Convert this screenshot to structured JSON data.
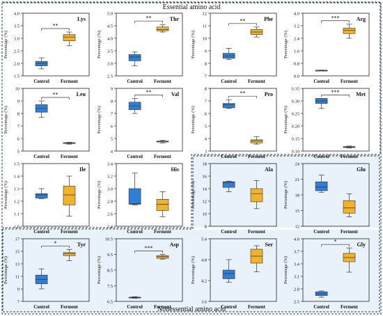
{
  "figure": {
    "top_section_title": "Essential amino acid",
    "bottom_section_title": "Nonessential amino acid",
    "colors": {
      "control": "#2f7fd6",
      "ferment": "#f2b32c",
      "essential_bg": "#ffffff",
      "nonessential_bg": "#e9f2fa",
      "frame": "#1f3b57"
    }
  },
  "chart_data": [
    {
      "type": "box",
      "panel": "Lys",
      "title": "Lys",
      "ylabel": "Percentage (%)",
      "categories": [
        "Control",
        "Ferment"
      ],
      "ylim": [
        1.5,
        4.0
      ],
      "yticks": [
        1.5,
        2.0,
        2.5,
        3.0,
        3.5,
        4.0
      ],
      "tick_decimals": 1,
      "significance": "**",
      "boxes": [
        {
          "min": 1.78,
          "q1": 1.9,
          "median": 2.0,
          "q3": 2.08,
          "max": 2.22
        },
        {
          "min": 2.7,
          "q1": 2.9,
          "median": 3.05,
          "q3": 3.15,
          "max": 3.25
        }
      ]
    },
    {
      "type": "box",
      "panel": "Thr",
      "title": "Thr",
      "ylabel": "Percentage (%)",
      "categories": [
        "Control",
        "Ferment"
      ],
      "ylim": [
        2.5,
        5.0
      ],
      "yticks": [
        2.5,
        3.0,
        3.5,
        4.0,
        4.5,
        5.0
      ],
      "tick_decimals": 1,
      "significance": "**",
      "boxes": [
        {
          "min": 2.9,
          "q1": 3.1,
          "median": 3.25,
          "q3": 3.35,
          "max": 3.45
        },
        {
          "min": 4.25,
          "q1": 4.3,
          "median": 4.35,
          "q3": 4.45,
          "max": 4.55
        }
      ]
    },
    {
      "type": "box",
      "panel": "Phe",
      "title": "Phe",
      "ylabel": "Percentage (%)",
      "categories": [
        "Control",
        "Ferment"
      ],
      "ylim": [
        7,
        12
      ],
      "yticks": [
        7,
        8,
        9,
        10,
        11,
        12
      ],
      "tick_decimals": 0,
      "significance": "**",
      "boxes": [
        {
          "min": 8.3,
          "q1": 8.4,
          "median": 8.6,
          "q3": 8.8,
          "max": 9.2
        },
        {
          "min": 10.1,
          "q1": 10.3,
          "median": 10.5,
          "q3": 10.7,
          "max": 10.9
        }
      ]
    },
    {
      "type": "box",
      "panel": "Arg",
      "title": "Arg",
      "ylabel": "Percentage (%)",
      "categories": [
        "Control",
        "Ferment"
      ],
      "ylim": [
        0.0,
        4.0
      ],
      "yticks": [
        0.0,
        0.8,
        1.6,
        2.4,
        3.2,
        4.0
      ],
      "tick_decimals": 1,
      "significance": "***",
      "boxes": [
        {
          "min": 0.33,
          "q1": 0.34,
          "median": 0.35,
          "q3": 0.36,
          "max": 0.37
        },
        {
          "min": 2.4,
          "q1": 2.7,
          "median": 2.9,
          "q3": 3.05,
          "max": 3.3
        }
      ]
    },
    {
      "type": "box",
      "panel": "Leu",
      "title": "Leu",
      "ylabel": "Percentage (%)",
      "categories": [
        "Control",
        "Ferment"
      ],
      "ylim": [
        5,
        10
      ],
      "yticks": [
        5,
        6,
        7,
        8,
        9,
        10
      ],
      "tick_decimals": 0,
      "significance": "**",
      "boxes": [
        {
          "min": 7.7,
          "q1": 8.1,
          "median": 8.4,
          "q3": 8.7,
          "max": 9.0
        },
        {
          "min": 5.55,
          "q1": 5.6,
          "median": 5.63,
          "q3": 5.67,
          "max": 5.7
        }
      ]
    },
    {
      "type": "box",
      "panel": "Val",
      "title": "Val",
      "ylabel": "Percentage (%)",
      "categories": [
        "Control",
        "Ferment"
      ],
      "ylim": [
        4,
        9
      ],
      "yticks": [
        4,
        5,
        6,
        7,
        8,
        9
      ],
      "tick_decimals": 0,
      "significance": "**",
      "boxes": [
        {
          "min": 7.0,
          "q1": 7.3,
          "median": 7.6,
          "q3": 7.9,
          "max": 8.2
        },
        {
          "min": 4.65,
          "q1": 4.72,
          "median": 4.75,
          "q3": 4.8,
          "max": 4.85
        }
      ]
    },
    {
      "type": "box",
      "panel": "Pro",
      "title": "Pro",
      "ylabel": "Percentage (%)",
      "categories": [
        "Control",
        "Ferment"
      ],
      "ylim": [
        3,
        8
      ],
      "yticks": [
        3,
        4,
        5,
        6,
        7,
        8
      ],
      "tick_decimals": 0,
      "significance": "**",
      "boxes": [
        {
          "min": 6.4,
          "q1": 6.45,
          "median": 6.7,
          "q3": 6.8,
          "max": 7.1
        },
        {
          "min": 3.55,
          "q1": 3.65,
          "median": 3.8,
          "q3": 3.9,
          "max": 4.15
        }
      ]
    },
    {
      "type": "box",
      "panel": "Met",
      "title": "Met",
      "ylabel": "Percentage (%)",
      "categories": [
        "Control",
        "Ferment"
      ],
      "ylim": [
        0.1,
        0.35
      ],
      "yticks": [
        0.1,
        0.15,
        0.2,
        0.25,
        0.3,
        0.35
      ],
      "tick_decimals": 2,
      "significance": "***",
      "boxes": [
        {
          "min": 0.27,
          "q1": 0.29,
          "median": 0.3,
          "q3": 0.31,
          "max": 0.31
        },
        {
          "min": 0.112,
          "q1": 0.114,
          "median": 0.116,
          "q3": 0.118,
          "max": 0.12
        }
      ]
    },
    {
      "type": "box",
      "panel": "Ile",
      "title": "Ile",
      "ylabel": "Percentage (%)",
      "categories": [
        "Control",
        "Ferment"
      ],
      "ylim": [
        1.0,
        1.5
      ],
      "yticks": [
        1.0,
        1.1,
        1.2,
        1.3,
        1.4,
        1.5
      ],
      "tick_decimals": 1,
      "significance": "",
      "boxes": [
        {
          "min": 1.22,
          "q1": 1.225,
          "median": 1.25,
          "q3": 1.26,
          "max": 1.3
        },
        {
          "min": 1.08,
          "q1": 1.17,
          "median": 1.25,
          "q3": 1.32,
          "max": 1.4
        }
      ]
    },
    {
      "type": "box",
      "panel": "His",
      "title": "His",
      "ylabel": "Percentage (%)",
      "categories": [
        "Control",
        "Ferment"
      ],
      "ylim": [
        2.4,
        3.4
      ],
      "yticks": [
        2.4,
        2.6,
        2.8,
        3.0,
        3.2,
        3.4
      ],
      "tick_decimals": 1,
      "significance": "",
      "boxes": [
        {
          "min": 2.74,
          "q1": 2.75,
          "median": 2.76,
          "q3": 3.0,
          "max": 3.25
        },
        {
          "min": 2.55,
          "q1": 2.65,
          "median": 2.75,
          "q3": 2.83,
          "max": 2.95
        }
      ]
    },
    {
      "type": "box",
      "panel": "Ala",
      "title": "Ala",
      "ylabel": "Percentage (%)",
      "categories": [
        "Control",
        "Ferment"
      ],
      "ylim": [
        8,
        18
      ],
      "yticks": [
        8,
        10,
        12,
        14,
        16,
        18
      ],
      "tick_decimals": 0,
      "significance": "",
      "boxes": [
        {
          "min": 13.5,
          "q1": 14.2,
          "median": 15.0,
          "q3": 15.1,
          "max": 15.2
        },
        {
          "min": 10.8,
          "q1": 11.9,
          "median": 13.2,
          "q3": 14.0,
          "max": 15.3
        }
      ]
    },
    {
      "type": "box",
      "panel": "Glu",
      "title": "Glu",
      "ylabel": "Percentage (%)",
      "categories": [
        "Control",
        "Ferment"
      ],
      "ylim": [
        12,
        24
      ],
      "yticks": [
        12,
        15,
        18,
        21,
        24
      ],
      "tick_decimals": 0,
      "significance": "",
      "boxes": [
        {
          "min": 18.5,
          "q1": 18.8,
          "median": 19.5,
          "q3": 20.5,
          "max": 21.8
        },
        {
          "min": 13.8,
          "q1": 14.5,
          "median": 15.5,
          "q3": 16.9,
          "max": 18.2
        }
      ]
    },
    {
      "type": "box",
      "panel": "Tyr",
      "title": "Tyr",
      "ylabel": "Percentage (%)",
      "categories": [
        "Control",
        "Ferment"
      ],
      "ylim": [
        7,
        17
      ],
      "yticks": [
        7,
        9,
        11,
        13,
        15,
        17
      ],
      "tick_decimals": 0,
      "significance": "*",
      "boxes": [
        {
          "min": 9.0,
          "q1": 9.8,
          "median": 10.5,
          "q3": 11.2,
          "max": 12.2
        },
        {
          "min": 13.5,
          "q1": 14.3,
          "median": 14.6,
          "q3": 14.8,
          "max": 15.3
        }
      ]
    },
    {
      "type": "box",
      "panel": "Asp",
      "title": "Asp",
      "ylabel": "Percentage (%)",
      "categories": [
        "Control",
        "Ferment"
      ],
      "ylim": [
        6.5,
        10.5
      ],
      "yticks": [
        6.5,
        7.5,
        8.5,
        9.5,
        10.5
      ],
      "tick_decimals": 1,
      "significance": "***",
      "boxes": [
        {
          "min": 6.7,
          "q1": 6.72,
          "median": 6.75,
          "q3": 6.77,
          "max": 6.8
        },
        {
          "min": 9.2,
          "q1": 9.25,
          "median": 9.35,
          "q3": 9.42,
          "max": 9.5
        }
      ]
    },
    {
      "type": "box",
      "panel": "Ser",
      "title": "Ser",
      "ylabel": "Percentage (%)",
      "categories": [
        "Control",
        "Ferment"
      ],
      "ylim": [
        3.6,
        5.4
      ],
      "yticks": [
        3.6,
        4.2,
        4.8,
        5.4
      ],
      "tick_decimals": 1,
      "significance": "",
      "boxes": [
        {
          "min": 4.15,
          "q1": 4.25,
          "median": 4.4,
          "q3": 4.5,
          "max": 4.8
        },
        {
          "min": 4.45,
          "q1": 4.7,
          "median": 4.9,
          "q3": 5.1,
          "max": 5.2
        }
      ]
    },
    {
      "type": "box",
      "panel": "Gly",
      "title": "Gly",
      "ylabel": "Percentage (%)",
      "categories": [
        "Control",
        "Ferment"
      ],
      "ylim": [
        2.5,
        4.0
      ],
      "yticks": [
        2.5,
        2.8,
        3.1,
        3.4,
        3.7,
        4.0
      ],
      "tick_decimals": 1,
      "significance": "*",
      "boxes": [
        {
          "min": 2.6,
          "q1": 2.64,
          "median": 2.68,
          "q3": 2.73,
          "max": 2.75
        },
        {
          "min": 3.2,
          "q1": 3.45,
          "median": 3.55,
          "q3": 3.65,
          "max": 3.78
        }
      ]
    }
  ]
}
